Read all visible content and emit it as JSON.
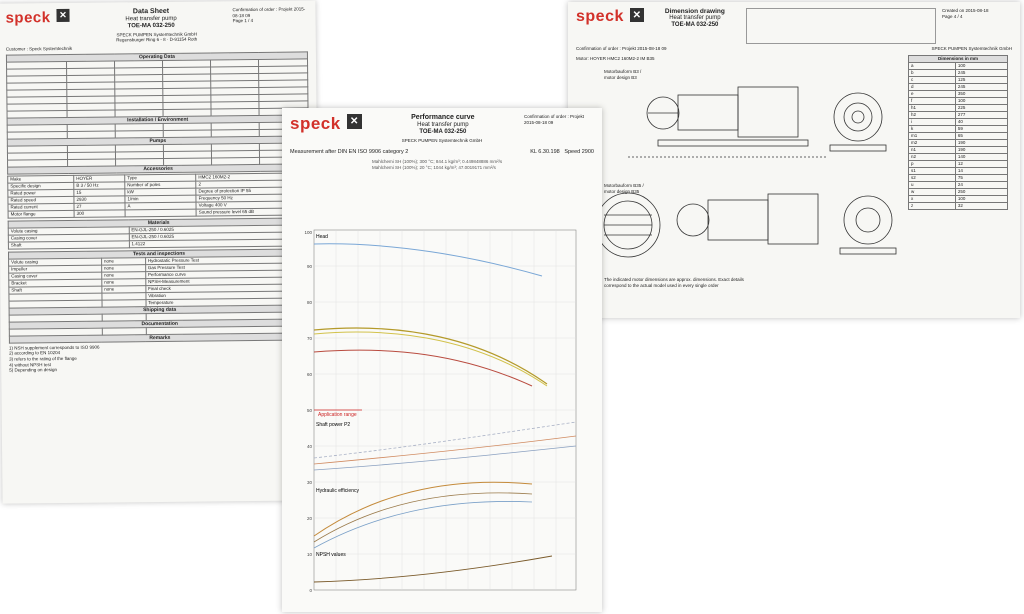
{
  "brand": {
    "logo": "speck",
    "accent": "#d2312a"
  },
  "sheet1": {
    "title": "Data Sheet",
    "subtitle": "Heat transfer pump",
    "model": "TOE-MA 032-250",
    "company": "SPECK PUMPEN Systemtechnik GmbH",
    "address": "Regensburger Ring 6 - 8 · D-91154 Roth",
    "order": "Confirmation of order : Projekt 2015-08-18 09",
    "page": "Page 1 / 4",
    "customer": "Customer : Speck Systemtechnik",
    "sections": [
      "Operating Data",
      "Installation / Environment",
      "Pumps",
      "Accessories",
      "Materials",
      "Tests and inspections",
      "Shipping data",
      "Documentation",
      "Remarks"
    ],
    "motor_rows": [
      [
        "Make",
        "HOYER",
        "Type",
        "HMC2 160M2-2"
      ],
      [
        "Specific design",
        "B 3 / 50 Hz",
        "Number of poles",
        "2"
      ],
      [
        "Rated power",
        "15",
        "kW",
        "Degree of protection IP 55"
      ],
      [
        "Rated speed",
        "2930",
        "1/min",
        "Frequency 50 Hz"
      ],
      [
        "Rated current",
        "27",
        "A",
        "Voltage 400 V"
      ],
      [
        "Motor flange",
        "300",
        "",
        "Sound pressure level 65 dB"
      ]
    ],
    "materials": [
      [
        "Volute casing",
        "EN-GJL-250 / 0.6025"
      ],
      [
        "Casing cover",
        "EN-GJL-250 / 0.6025"
      ],
      [
        "Shaft",
        "1.4122"
      ]
    ],
    "tests": [
      [
        "Volute casing",
        "none"
      ],
      [
        "Impeller",
        "none"
      ],
      [
        "Casing cover",
        "none"
      ],
      [
        "Bracket",
        "none"
      ],
      [
        "Shaft",
        "none"
      ]
    ],
    "test_types": [
      "Hydrostatic Pressure Test",
      "Gas Pressure Test",
      "Performance curve",
      "NPSH-Measurement",
      "Final check",
      "Vibration",
      "Temperature"
    ],
    "notes": [
      "1) NSH supplement corresponds to ISO 9906",
      "2) according to EN 10204",
      "3) refers to the rating of the flange",
      "4) without NPSH test",
      "5) Depending on design"
    ]
  },
  "sheet2": {
    "title": "Performance curve",
    "subtitle": "Heat transfer pump",
    "model": "TOE-MA 032-250",
    "company": "SPECK PUMPEN Systemtechnik GmbH",
    "order": "Confirmation of order : Projekt 2015-08-18 09",
    "measure": "Measurement after DIN EN ISO 9906 category 2",
    "speed_label": "Speed",
    "speed_value": "2900",
    "kl": "KL 6.30.198",
    "medium1": "Mahlchemi SH (100%); 300 °C; 844.1 kg/m³; 0.449848886 mm²/s",
    "medium2": "Mahlchemi SH (100%); 20 °C; 1044 kg/m³; 47.0019171 mm²/s",
    "labels": {
      "head": "Head",
      "power": "Shaft power P2",
      "eff": "Hydraulic efficiency",
      "npsh": "NPSH values",
      "app": "Application range"
    },
    "y_ticks": [
      "100",
      "90",
      "80",
      "70",
      "60",
      "50",
      "40",
      "30",
      "20",
      "10",
      "0"
    ],
    "x_ticks": [
      "0",
      "4",
      "8",
      "12",
      "16",
      "20",
      "24",
      "28",
      "32",
      "36",
      "40",
      "44",
      "48"
    ]
  },
  "sheet3": {
    "title": "Dimension drawing",
    "subtitle": "Heat transfer pump",
    "model": "TOE-MA 032-250",
    "company": "SPECK PUMPEN Systemtechnik GmbH",
    "order": "Confirmation of order : Projekt 2015-08-18 09",
    "date_label": "Created on",
    "date": "2015-08-18",
    "page": "Page 4 / 4",
    "motor_label": "Motor",
    "motor": "HOYER  HMC2 160M2-2  IM B35",
    "suction": "Suction port",
    "delivery": "Delivery port",
    "design1": "Motorbauform B3 / motor design B3",
    "design2": "Motorbauform B35 / motor design B35",
    "note": "The indicated motor dimensions are approx. dimensions. Exact details correspond to the actual model used in every single order",
    "dim_head": "Dimensions in mm",
    "dims": [
      [
        "a",
        "100"
      ],
      [
        "b",
        "245"
      ],
      [
        "c",
        "125"
      ],
      [
        "d",
        "245"
      ],
      [
        "e",
        "350"
      ],
      [
        "f",
        "100"
      ],
      [
        "h1",
        "225"
      ],
      [
        "h2",
        "277"
      ],
      [
        "i",
        "40"
      ],
      [
        "k",
        "59"
      ],
      [
        "m1",
        "65"
      ],
      [
        "m2",
        "190"
      ],
      [
        "n1",
        "190"
      ],
      [
        "n2",
        "140"
      ],
      [
        "p",
        "12"
      ],
      [
        "s1",
        "14"
      ],
      [
        "s2",
        "75"
      ],
      [
        "u",
        "24"
      ],
      [
        "w",
        "250"
      ],
      [
        "x",
        "100"
      ],
      [
        "z",
        "32"
      ]
    ]
  }
}
